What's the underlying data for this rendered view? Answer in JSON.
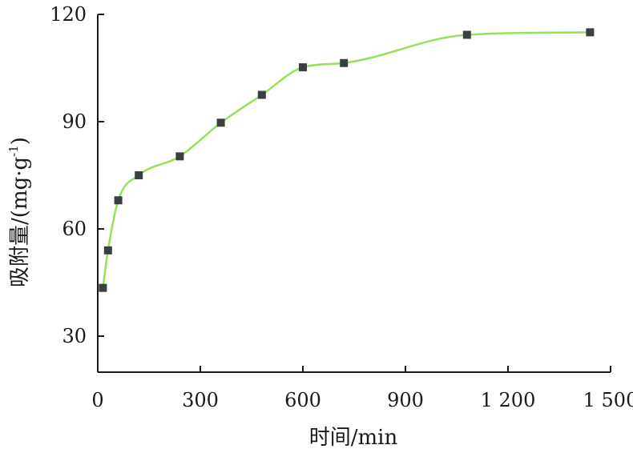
{
  "chart_data": {
    "type": "scatter",
    "xlabel": "时间/min",
    "ylabel_main": "吸附量/(mg·g",
    "ylabel_sup": "-1",
    "ylabel_close": ")",
    "xlim": [
      0,
      1500
    ],
    "ylim": [
      20,
      120
    ],
    "xticks": [
      0,
      300,
      600,
      900,
      1200,
      1500
    ],
    "xtick_labels": [
      "0",
      "300",
      "600",
      "900",
      "1 200",
      "1 500"
    ],
    "yticks": [
      30,
      60,
      90,
      120
    ],
    "ytick_labels": [
      "30",
      "60",
      "90",
      "120"
    ],
    "grid": false,
    "series": [
      {
        "points": [
          {
            "x": 15,
            "y": 43.5
          },
          {
            "x": 30,
            "y": 54
          },
          {
            "x": 60,
            "y": 68
          },
          {
            "x": 120,
            "y": 75
          },
          {
            "x": 240,
            "y": 80.3
          },
          {
            "x": 360,
            "y": 89.7
          },
          {
            "x": 480,
            "y": 97.5
          },
          {
            "x": 600,
            "y": 105.2
          },
          {
            "x": 720,
            "y": 106.4
          },
          {
            "x": 1080,
            "y": 114.3
          },
          {
            "x": 1440,
            "y": 115
          }
        ],
        "color": "#3a3f44",
        "fit_color": "#92e35a"
      }
    ]
  }
}
